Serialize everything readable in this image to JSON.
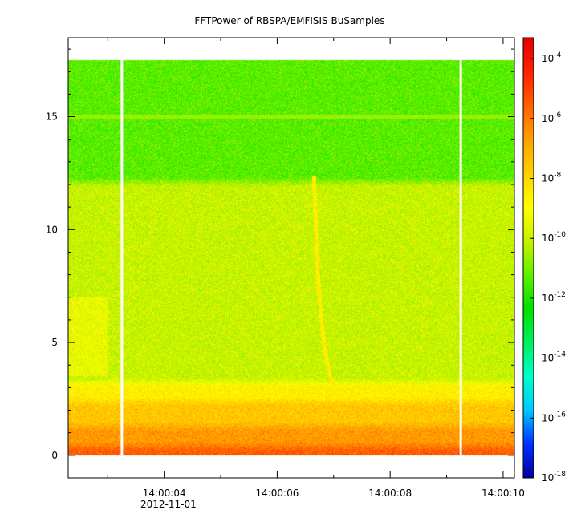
{
  "chart_data": {
    "type": "heatmap",
    "title": "FFTPower of RBSPA/EMFISIS  BuSamples",
    "xlabel": "",
    "ylabel": "",
    "x_axis": {
      "unit": "time",
      "range": [
        "14:00:02.3",
        "14:00:10.2"
      ],
      "ticks": [
        "14:00:04",
        "14:00:06",
        "14:00:08",
        "14:00:10"
      ],
      "tick_seconds": [
        4,
        6,
        8,
        10
      ],
      "range_seconds": [
        2.3,
        10.2
      ],
      "minor_tick_seconds": [
        3,
        5,
        7,
        9
      ],
      "date_label": "2012-11-01"
    },
    "y_axis": {
      "range": [
        -1,
        18.5
      ],
      "ticks": [
        0,
        5,
        10,
        15
      ],
      "minor_ticks": [
        1,
        2,
        3,
        4,
        6,
        7,
        8,
        9,
        11,
        12,
        13,
        14,
        16,
        17,
        18
      ]
    },
    "colorbar": {
      "scale": "log",
      "range_exponents": [
        -18,
        -3.3
      ],
      "tick_exponents": [
        -4,
        -6,
        -8,
        -10,
        -12,
        -14,
        -16,
        -18
      ],
      "tick_base": "10",
      "colormap": [
        "#0000a0",
        "#0030ff",
        "#00c8ff",
        "#00ffc8",
        "#00f060",
        "#00e000",
        "#60f000",
        "#c8f000",
        "#ffff00",
        "#ffd000",
        "#ffa000",
        "#ff6000",
        "#ff2000",
        "#e00000"
      ]
    },
    "data_extent": {
      "y": [
        0,
        17.5
      ],
      "x_seconds": [
        2.3,
        10.2
      ]
    },
    "gaps_seconds": [
      3.25,
      9.25
    ],
    "bands": [
      {
        "y": [
          0,
          0.6
        ],
        "level_exponent": -5.5
      },
      {
        "y": [
          0.6,
          1.5
        ],
        "level_exponent": -6.6
      },
      {
        "y": [
          1.5,
          2.6
        ],
        "level_exponent": -7.6
      },
      {
        "y": [
          2.6,
          3.4
        ],
        "level_exponent": -8.6
      },
      {
        "y": [
          3.4,
          12.3
        ],
        "level_exponent": -10.0
      },
      {
        "y": [
          12.3,
          17.5
        ],
        "level_exponent": -11.3
      }
    ],
    "whistler_trace": {
      "level_exponent": -8.5,
      "points": [
        {
          "t": 6.65,
          "f": 12.4
        },
        {
          "t": 6.68,
          "f": 10.5
        },
        {
          "t": 6.72,
          "f": 8.0
        },
        {
          "t": 6.78,
          "f": 6.0
        },
        {
          "t": 6.85,
          "f": 4.6
        },
        {
          "t": 6.93,
          "f": 3.6
        },
        {
          "t": 7.0,
          "f": 3.0
        }
      ]
    },
    "line_feature": {
      "f": 15.0,
      "level_exponent": -10.6
    }
  }
}
